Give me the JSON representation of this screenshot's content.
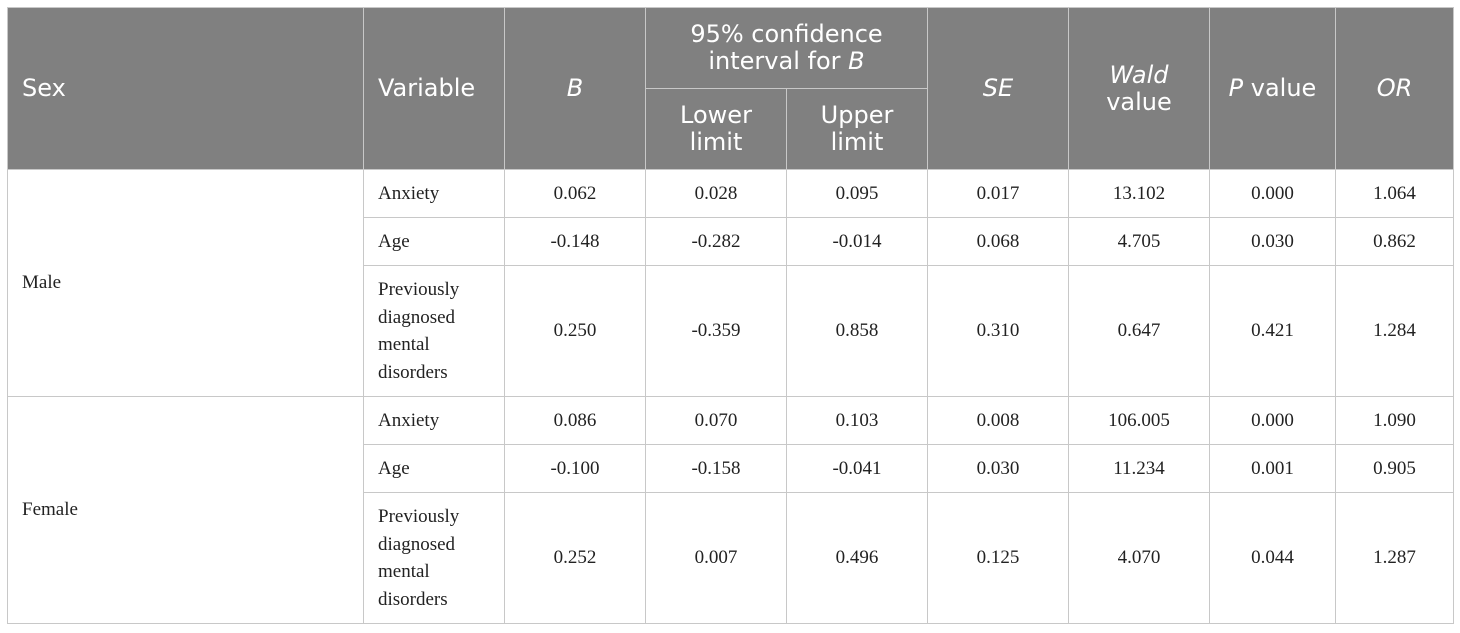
{
  "header": {
    "sex": "Sex",
    "variable": "Variable",
    "b": "B",
    "ci_prefix": "95% confidence interval for ",
    "ci_b": "B",
    "lower_line1": "Lower",
    "lower_line2": "limit",
    "upper_line1": "Upper",
    "upper_line2": "limit",
    "se": "SE",
    "wald_line1": "Wald",
    "wald_line2": "value",
    "p_prefix": "P",
    "p_suffix": " value",
    "or": "OR"
  },
  "groups": [
    {
      "sex": "Male",
      "rows": [
        {
          "variable": "Anxiety",
          "b": "0.062",
          "lower": "0.028",
          "upper": "0.095",
          "se": "0.017",
          "wald": "13.102",
          "p": "0.000",
          "or": "1.064"
        },
        {
          "variable": "Age",
          "b": "-0.148",
          "lower": "-0.282",
          "upper": "-0.014",
          "se": "0.068",
          "wald": "4.705",
          "p": "0.030",
          "or": "0.862"
        },
        {
          "variable_lines": [
            "Previously",
            "diagnosed",
            "mental",
            "disorders"
          ],
          "b": "0.250",
          "lower": "-0.359",
          "upper": "0.858",
          "se": "0.310",
          "wald": "0.647",
          "p": "0.421",
          "or": "1.284"
        }
      ]
    },
    {
      "sex": "Female",
      "rows": [
        {
          "variable": "Anxiety",
          "b": "0.086",
          "lower": "0.070",
          "upper": "0.103",
          "se": "0.008",
          "wald": "106.005",
          "p": "0.000",
          "or": "1.090"
        },
        {
          "variable": "Age",
          "b": "-0.100",
          "lower": "-0.158",
          "upper": "-0.041",
          "se": "0.030",
          "wald": "11.234",
          "p": "0.001",
          "or": "0.905"
        },
        {
          "variable_lines": [
            "Previously",
            "diagnosed",
            "mental",
            "disorders"
          ],
          "b": "0.252",
          "lower": "0.007",
          "upper": "0.496",
          "se": "0.125",
          "wald": "4.070",
          "p": "0.044",
          "or": "1.287"
        }
      ]
    }
  ],
  "colors": {
    "header_bg": "#808080",
    "header_text": "#ffffff",
    "border": "#c8c8c8"
  }
}
